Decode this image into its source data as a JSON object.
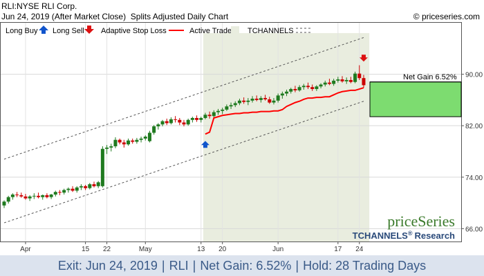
{
  "header": {
    "symbol_line": "RLI:NYSE RLI Corp.",
    "date_line": "Jun 24, 2019 (After Market Close)",
    "chart_kind": "Splits Adjusted Daily Chart",
    "copyright": "© priceseries.com"
  },
  "legend": {
    "long_buy": "Long Buy",
    "long_sell": "Long Sell",
    "adaptive_stop": "Adaptive Stop Loss",
    "active_trade": "Active Trade",
    "tchannels": "TCHANNELS"
  },
  "annotation": {
    "net_gain": "Net Gain 6.52%"
  },
  "brand": {
    "name": "priceSeries",
    "tagline": "TCHANNELS",
    "reg": "®",
    "research": "Research"
  },
  "footer": {
    "exit": "Exit: Jun 24, 2019",
    "ticker": "RLI",
    "gain": "Net Gain: 6.52%",
    "hold": "Hold: 28 Trading Days"
  },
  "colors": {
    "up": "#1f7a1f",
    "down": "#cc0000",
    "stop": "#ff0000",
    "active_trade_bg": "#e9eddf",
    "gain_box": "#7ddc70",
    "buy_arrow": "#1155cc",
    "sell_arrow": "#dd1111",
    "channel": "#555555",
    "footer_bg": "#dce3ee",
    "footer_text": "#3a5a88",
    "brand_green": "#3a7a2a",
    "brand_blue": "#2a4a7a"
  },
  "chart_data": {
    "type": "candlestick",
    "title": "RLI:NYSE RLI Corp.",
    "ylim": [
      64,
      98
    ],
    "y_ticks": [
      "66.00",
      "74.00",
      "82.00",
      "90.00"
    ],
    "y_tick_values": [
      66,
      74,
      82,
      90
    ],
    "x_tick_labels": [
      "Apr",
      "15",
      "22",
      "May",
      "13",
      "20",
      "Jun",
      "17",
      "24"
    ],
    "x_tick_index": [
      5,
      19,
      24,
      33,
      46,
      51,
      64,
      78,
      83
    ],
    "candles": [
      {
        "o": 69.6,
        "h": 70.4,
        "l": 69.2,
        "c": 70.2
      },
      {
        "o": 70.2,
        "h": 71.1,
        "l": 69.9,
        "c": 70.9
      },
      {
        "o": 70.9,
        "h": 71.5,
        "l": 70.5,
        "c": 71.3
      },
      {
        "o": 71.3,
        "h": 71.7,
        "l": 70.9,
        "c": 71.2
      },
      {
        "o": 71.2,
        "h": 71.6,
        "l": 70.8,
        "c": 71.0
      },
      {
        "o": 71.0,
        "h": 71.4,
        "l": 70.5,
        "c": 70.7
      },
      {
        "o": 70.7,
        "h": 71.2,
        "l": 70.3,
        "c": 71.0
      },
      {
        "o": 71.0,
        "h": 71.5,
        "l": 70.6,
        "c": 71.1
      },
      {
        "o": 71.1,
        "h": 71.6,
        "l": 70.7,
        "c": 70.9
      },
      {
        "o": 70.9,
        "h": 71.3,
        "l": 70.5,
        "c": 71.2
      },
      {
        "o": 71.2,
        "h": 71.5,
        "l": 70.7,
        "c": 70.9
      },
      {
        "o": 70.9,
        "h": 71.4,
        "l": 70.6,
        "c": 71.3
      },
      {
        "o": 71.3,
        "h": 71.9,
        "l": 71.0,
        "c": 71.7
      },
      {
        "o": 71.7,
        "h": 72.0,
        "l": 71.2,
        "c": 71.6
      },
      {
        "o": 71.6,
        "h": 72.2,
        "l": 71.3,
        "c": 72.0
      },
      {
        "o": 72.0,
        "h": 72.4,
        "l": 71.6,
        "c": 72.2
      },
      {
        "o": 72.2,
        "h": 72.6,
        "l": 71.7,
        "c": 71.9
      },
      {
        "o": 71.9,
        "h": 72.6,
        "l": 71.6,
        "c": 72.4
      },
      {
        "o": 72.4,
        "h": 72.9,
        "l": 72.0,
        "c": 72.6
      },
      {
        "o": 72.6,
        "h": 72.8,
        "l": 72.0,
        "c": 72.3
      },
      {
        "o": 72.3,
        "h": 73.1,
        "l": 72.1,
        "c": 72.9
      },
      {
        "o": 72.9,
        "h": 73.3,
        "l": 72.4,
        "c": 72.6
      },
      {
        "o": 72.6,
        "h": 73.4,
        "l": 72.3,
        "c": 73.2
      },
      {
        "o": 72.6,
        "h": 78.8,
        "l": 72.4,
        "c": 78.4
      },
      {
        "o": 78.4,
        "h": 79.0,
        "l": 77.6,
        "c": 78.6
      },
      {
        "o": 78.6,
        "h": 79.2,
        "l": 78.0,
        "c": 78.8
      },
      {
        "o": 78.8,
        "h": 80.2,
        "l": 78.5,
        "c": 79.8
      },
      {
        "o": 79.8,
        "h": 80.0,
        "l": 79.1,
        "c": 79.4
      },
      {
        "o": 79.4,
        "h": 79.8,
        "l": 78.6,
        "c": 79.1
      },
      {
        "o": 79.1,
        "h": 80.0,
        "l": 78.9,
        "c": 79.7
      },
      {
        "o": 79.7,
        "h": 80.0,
        "l": 79.2,
        "c": 79.5
      },
      {
        "o": 79.5,
        "h": 80.1,
        "l": 79.2,
        "c": 79.8
      },
      {
        "o": 79.8,
        "h": 80.3,
        "l": 79.4,
        "c": 80.0
      },
      {
        "o": 80.0,
        "h": 80.5,
        "l": 79.7,
        "c": 80.3
      },
      {
        "o": 79.6,
        "h": 81.2,
        "l": 79.4,
        "c": 80.9
      },
      {
        "o": 80.9,
        "h": 82.1,
        "l": 80.6,
        "c": 81.9
      },
      {
        "o": 81.9,
        "h": 82.4,
        "l": 81.4,
        "c": 82.2
      },
      {
        "o": 82.2,
        "h": 82.9,
        "l": 81.9,
        "c": 82.7
      },
      {
        "o": 82.7,
        "h": 83.1,
        "l": 82.1,
        "c": 82.4
      },
      {
        "o": 82.4,
        "h": 83.3,
        "l": 82.2,
        "c": 83.0
      },
      {
        "o": 83.0,
        "h": 83.5,
        "l": 82.5,
        "c": 82.9
      },
      {
        "o": 82.9,
        "h": 83.2,
        "l": 82.1,
        "c": 82.5
      },
      {
        "o": 82.5,
        "h": 82.9,
        "l": 81.9,
        "c": 82.2
      },
      {
        "o": 82.2,
        "h": 83.1,
        "l": 82.0,
        "c": 82.9
      },
      {
        "o": 82.9,
        "h": 83.4,
        "l": 82.5,
        "c": 83.2
      },
      {
        "o": 83.2,
        "h": 83.6,
        "l": 82.6,
        "c": 82.9
      },
      {
        "o": 82.9,
        "h": 83.4,
        "l": 82.5,
        "c": 83.2
      },
      {
        "o": 83.2,
        "h": 84.0,
        "l": 83.0,
        "c": 83.7
      },
      {
        "o": 83.7,
        "h": 84.2,
        "l": 83.1,
        "c": 83.5
      },
      {
        "o": 83.5,
        "h": 84.4,
        "l": 83.3,
        "c": 84.1
      },
      {
        "o": 84.1,
        "h": 84.6,
        "l": 83.7,
        "c": 84.3
      },
      {
        "o": 84.3,
        "h": 84.8,
        "l": 83.8,
        "c": 84.5
      },
      {
        "o": 84.5,
        "h": 85.3,
        "l": 84.3,
        "c": 85.0
      },
      {
        "o": 85.0,
        "h": 85.6,
        "l": 84.6,
        "c": 85.2
      },
      {
        "o": 85.2,
        "h": 85.8,
        "l": 84.9,
        "c": 85.5
      },
      {
        "o": 85.5,
        "h": 86.2,
        "l": 85.2,
        "c": 85.9
      },
      {
        "o": 85.9,
        "h": 86.4,
        "l": 85.4,
        "c": 85.7
      },
      {
        "o": 85.7,
        "h": 86.3,
        "l": 85.2,
        "c": 85.9
      },
      {
        "o": 85.9,
        "h": 86.6,
        "l": 85.6,
        "c": 86.2
      },
      {
        "o": 86.2,
        "h": 86.7,
        "l": 85.8,
        "c": 86.0
      },
      {
        "o": 86.0,
        "h": 86.6,
        "l": 85.6,
        "c": 86.3
      },
      {
        "o": 86.3,
        "h": 86.8,
        "l": 85.9,
        "c": 86.1
      },
      {
        "o": 86.1,
        "h": 86.5,
        "l": 85.4,
        "c": 85.6
      },
      {
        "o": 85.6,
        "h": 86.3,
        "l": 85.3,
        "c": 85.9
      },
      {
        "o": 85.9,
        "h": 87.0,
        "l": 85.6,
        "c": 86.7
      },
      {
        "o": 86.7,
        "h": 87.3,
        "l": 86.2,
        "c": 87.0
      },
      {
        "o": 87.0,
        "h": 87.6,
        "l": 86.6,
        "c": 87.3
      },
      {
        "o": 87.3,
        "h": 87.9,
        "l": 87.0,
        "c": 87.7
      },
      {
        "o": 87.7,
        "h": 88.2,
        "l": 87.2,
        "c": 87.5
      },
      {
        "o": 87.5,
        "h": 88.3,
        "l": 87.3,
        "c": 88.0
      },
      {
        "o": 88.0,
        "h": 88.5,
        "l": 87.6,
        "c": 88.2
      },
      {
        "o": 88.2,
        "h": 88.7,
        "l": 87.7,
        "c": 88.0
      },
      {
        "o": 88.0,
        "h": 88.4,
        "l": 87.4,
        "c": 87.7
      },
      {
        "o": 87.7,
        "h": 88.3,
        "l": 87.4,
        "c": 88.1
      },
      {
        "o": 88.1,
        "h": 88.6,
        "l": 87.8,
        "c": 88.4
      },
      {
        "o": 88.4,
        "h": 89.0,
        "l": 88.1,
        "c": 88.7
      },
      {
        "o": 88.7,
        "h": 89.3,
        "l": 88.3,
        "c": 88.5
      },
      {
        "o": 88.5,
        "h": 89.3,
        "l": 88.2,
        "c": 89.0
      },
      {
        "o": 89.0,
        "h": 89.6,
        "l": 88.7,
        "c": 89.2
      },
      {
        "o": 89.2,
        "h": 89.7,
        "l": 88.7,
        "c": 88.9
      },
      {
        "o": 88.9,
        "h": 89.5,
        "l": 88.5,
        "c": 89.1
      },
      {
        "o": 89.1,
        "h": 89.6,
        "l": 88.6,
        "c": 88.8
      },
      {
        "o": 88.8,
        "h": 90.4,
        "l": 88.6,
        "c": 90.1
      },
      {
        "o": 90.1,
        "h": 91.4,
        "l": 89.1,
        "c": 89.4
      },
      {
        "o": 89.4,
        "h": 89.9,
        "l": 87.9,
        "c": 88.3
      }
    ],
    "active_start_index": 47,
    "active_end_index": 85,
    "stop_loss": [
      [
        47,
        80.7
      ],
      [
        48,
        81.0
      ],
      [
        49,
        83.2
      ],
      [
        50,
        83.4
      ],
      [
        51,
        83.6
      ],
      [
        52,
        83.7
      ],
      [
        53,
        83.8
      ],
      [
        54,
        83.9
      ],
      [
        55,
        83.9
      ],
      [
        56,
        84.0
      ],
      [
        57,
        84.0
      ],
      [
        58,
        84.1
      ],
      [
        59,
        84.1
      ],
      [
        60,
        84.2
      ],
      [
        61,
        84.2
      ],
      [
        62,
        84.2
      ],
      [
        63,
        84.3
      ],
      [
        64,
        84.3
      ],
      [
        65,
        84.5
      ],
      [
        66,
        85.0
      ],
      [
        67,
        85.3
      ],
      [
        68,
        85.6
      ],
      [
        69,
        85.8
      ],
      [
        70,
        86.1
      ],
      [
        71,
        86.3
      ],
      [
        72,
        86.3
      ],
      [
        73,
        86.4
      ],
      [
        74,
        86.4
      ],
      [
        75,
        86.5
      ],
      [
        76,
        86.5
      ],
      [
        77,
        86.8
      ],
      [
        78,
        87.1
      ],
      [
        79,
        87.3
      ],
      [
        80,
        87.4
      ],
      [
        81,
        87.5
      ],
      [
        82,
        87.5
      ],
      [
        83,
        87.7
      ],
      [
        84,
        87.9
      ]
    ],
    "channel_upper": [
      [
        0,
        76.8
      ],
      [
        84,
        95.7
      ]
    ],
    "channel_mid": [
      [
        0,
        71.9
      ],
      [
        84,
        90.8
      ]
    ],
    "channel_lower": [
      [
        0,
        66.9
      ],
      [
        84,
        85.8
      ]
    ],
    "buy_index": 47,
    "buy_price": 79.2,
    "sell_index": 84,
    "sell_price": 92.4,
    "gain_from": 83.4,
    "gain_to": 88.8
  }
}
